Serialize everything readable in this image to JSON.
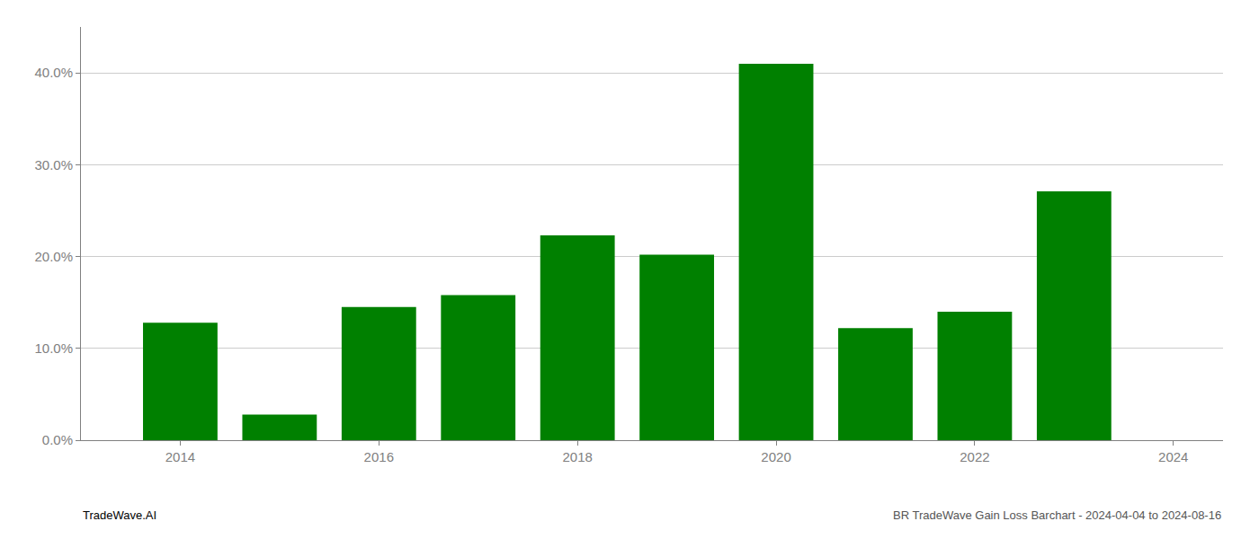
{
  "chart_data": {
    "type": "bar",
    "x": [
      2014,
      2015,
      2016,
      2017,
      2018,
      2019,
      2020,
      2021,
      2022,
      2023
    ],
    "values": [
      0.128,
      0.028,
      0.145,
      0.158,
      0.223,
      0.202,
      0.41,
      0.122,
      0.14,
      0.271
    ],
    "color": "#008000",
    "xlim": [
      2013,
      2024.5
    ],
    "xticks": [
      2014,
      2016,
      2018,
      2020,
      2022,
      2024
    ],
    "ylim": [
      0,
      0.45
    ],
    "yticks": [
      {
        "value": 0.0,
        "label": "0.0%"
      },
      {
        "value": 0.1,
        "label": "10.0%"
      },
      {
        "value": 0.2,
        "label": "20.0%"
      },
      {
        "value": 0.3,
        "label": "30.0%"
      },
      {
        "value": 0.4,
        "label": "40.0%"
      }
    ],
    "grid": true,
    "annotations": [
      "TradeWave.AI",
      "BR TradeWave Gain Loss Barchart - 2024-04-04 to 2024-08-16"
    ]
  }
}
